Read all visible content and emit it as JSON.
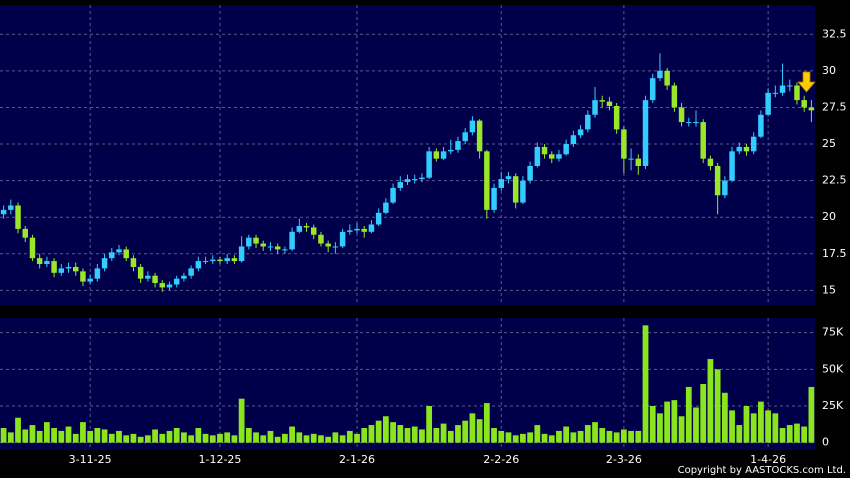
{
  "chart_data": [
    {
      "type": "candlestick",
      "up_color": "#33ccff",
      "down_color": "#99e62a",
      "ylim": [
        14,
        34.5
      ],
      "yticks": [
        15,
        17.5,
        20,
        22.5,
        25,
        27.5,
        30,
        32.5
      ],
      "grid": true,
      "ohlc": [
        [
          20.2,
          20.8,
          19.9,
          20.5
        ],
        [
          20.5,
          21.2,
          20.2,
          20.8
        ],
        [
          20.8,
          21.0,
          18.9,
          19.2
        ],
        [
          19.2,
          19.4,
          18.3,
          18.6
        ],
        [
          18.6,
          18.8,
          17.0,
          17.2
        ],
        [
          17.2,
          17.5,
          16.5,
          16.8
        ],
        [
          16.8,
          17.3,
          16.6,
          17.0
        ],
        [
          17.0,
          17.2,
          15.9,
          16.2
        ],
        [
          16.2,
          16.8,
          16.0,
          16.5
        ],
        [
          16.5,
          16.9,
          16.2,
          16.6
        ],
        [
          16.6,
          16.9,
          16.0,
          16.3
        ],
        [
          16.3,
          16.5,
          15.3,
          15.6
        ],
        [
          15.6,
          16.1,
          15.4,
          15.8
        ],
        [
          15.8,
          16.8,
          15.6,
          16.5
        ],
        [
          16.5,
          17.5,
          16.3,
          17.2
        ],
        [
          17.2,
          17.9,
          17.0,
          17.6
        ],
        [
          17.6,
          18.1,
          17.4,
          17.8
        ],
        [
          17.8,
          18.0,
          17.0,
          17.2
        ],
        [
          17.2,
          17.4,
          16.3,
          16.6
        ],
        [
          16.6,
          16.8,
          15.5,
          15.8
        ],
        [
          15.8,
          16.3,
          15.6,
          16.0
        ],
        [
          16.0,
          16.2,
          15.2,
          15.5
        ],
        [
          15.5,
          15.7,
          14.9,
          15.2
        ],
        [
          15.2,
          15.6,
          15.0,
          15.4
        ],
        [
          15.4,
          16.0,
          15.2,
          15.8
        ],
        [
          15.8,
          16.2,
          15.6,
          16.0
        ],
        [
          16.0,
          16.7,
          15.8,
          16.5
        ],
        [
          16.5,
          17.3,
          16.3,
          17.0
        ],
        [
          17.0,
          17.3,
          16.8,
          17.0
        ],
        [
          17.0,
          17.4,
          16.8,
          17.1
        ],
        [
          17.1,
          17.3,
          16.8,
          17.0
        ],
        [
          17.0,
          17.5,
          16.8,
          17.2
        ],
        [
          17.2,
          17.4,
          16.8,
          17.0
        ],
        [
          17.0,
          18.7,
          16.9,
          18.0
        ],
        [
          18.0,
          18.8,
          17.8,
          18.6
        ],
        [
          18.6,
          18.8,
          17.9,
          18.2
        ],
        [
          18.2,
          18.4,
          17.7,
          18.0
        ],
        [
          18.0,
          18.3,
          17.7,
          18.0
        ],
        [
          18.0,
          18.2,
          17.5,
          17.8
        ],
        [
          17.8,
          18.0,
          17.5,
          17.8
        ],
        [
          17.8,
          19.3,
          17.7,
          19.0
        ],
        [
          19.0,
          19.9,
          18.9,
          19.4
        ],
        [
          19.4,
          19.6,
          19.0,
          19.3
        ],
        [
          19.3,
          19.5,
          18.5,
          18.8
        ],
        [
          18.8,
          19.0,
          18.0,
          18.2
        ],
        [
          18.2,
          18.4,
          17.6,
          18.0
        ],
        [
          18.0,
          18.3,
          17.5,
          18.0
        ],
        [
          18.0,
          19.2,
          17.9,
          19.0
        ],
        [
          19.0,
          19.5,
          18.8,
          19.1
        ],
        [
          19.1,
          19.6,
          18.9,
          19.2
        ],
        [
          19.2,
          19.4,
          18.6,
          19.0
        ],
        [
          19.0,
          19.8,
          18.9,
          19.5
        ],
        [
          19.5,
          20.6,
          19.4,
          20.3
        ],
        [
          20.3,
          21.3,
          20.2,
          21.0
        ],
        [
          21.0,
          22.3,
          20.9,
          22.0
        ],
        [
          22.0,
          22.8,
          21.8,
          22.4
        ],
        [
          22.4,
          22.9,
          22.2,
          22.6
        ],
        [
          22.6,
          22.9,
          22.3,
          22.6
        ],
        [
          22.6,
          23.0,
          22.4,
          22.7
        ],
        [
          22.7,
          24.8,
          22.6,
          24.5
        ],
        [
          24.5,
          24.7,
          23.8,
          24.0
        ],
        [
          24.0,
          24.8,
          23.9,
          24.5
        ],
        [
          24.5,
          25.3,
          24.3,
          24.6
        ],
        [
          24.6,
          25.5,
          24.4,
          25.2
        ],
        [
          25.2,
          26.1,
          25.0,
          25.8
        ],
        [
          25.8,
          26.9,
          25.6,
          26.6
        ],
        [
          26.6,
          26.7,
          24.0,
          24.5
        ],
        [
          24.5,
          24.6,
          19.9,
          20.5
        ],
        [
          20.5,
          22.3,
          20.3,
          22.0
        ],
        [
          22.0,
          23.1,
          21.8,
          22.6
        ],
        [
          22.6,
          23.1,
          22.3,
          22.8
        ],
        [
          22.8,
          23.0,
          20.6,
          21.0
        ],
        [
          21.0,
          22.8,
          20.9,
          22.5
        ],
        [
          22.5,
          23.8,
          22.3,
          23.5
        ],
        [
          23.5,
          25.1,
          23.4,
          24.8
        ],
        [
          24.8,
          25.0,
          24.0,
          24.3
        ],
        [
          24.3,
          24.5,
          23.7,
          24.0
        ],
        [
          24.0,
          24.6,
          23.8,
          24.3
        ],
        [
          24.3,
          25.3,
          24.2,
          25.0
        ],
        [
          25.0,
          25.9,
          24.8,
          25.6
        ],
        [
          25.6,
          26.3,
          25.4,
          26.0
        ],
        [
          26.0,
          27.3,
          25.8,
          27.0
        ],
        [
          27.0,
          28.9,
          26.8,
          28.0
        ],
        [
          28.0,
          28.3,
          27.5,
          27.9
        ],
        [
          27.9,
          28.2,
          27.3,
          27.6
        ],
        [
          27.6,
          27.8,
          25.7,
          26.0
        ],
        [
          26.0,
          26.2,
          23.0,
          24.0
        ],
        [
          24.0,
          24.7,
          23.2,
          24.0
        ],
        [
          24.0,
          24.3,
          22.9,
          23.5
        ],
        [
          23.5,
          28.3,
          23.3,
          28.0
        ],
        [
          28.0,
          29.8,
          27.8,
          29.5
        ],
        [
          29.5,
          31.2,
          29.3,
          30.0
        ],
        [
          30.0,
          30.2,
          28.7,
          29.0
        ],
        [
          29.0,
          29.2,
          27.2,
          27.5
        ],
        [
          27.5,
          27.8,
          26.2,
          26.5
        ],
        [
          26.5,
          26.8,
          26.2,
          26.5
        ],
        [
          26.5,
          27.3,
          26.2,
          26.5
        ],
        [
          26.5,
          26.7,
          23.7,
          24.0
        ],
        [
          24.0,
          24.2,
          23.2,
          23.5
        ],
        [
          23.5,
          23.7,
          20.2,
          21.5
        ],
        [
          21.5,
          22.8,
          21.3,
          22.5
        ],
        [
          22.5,
          24.8,
          22.4,
          24.5
        ],
        [
          24.5,
          25.1,
          24.3,
          24.8
        ],
        [
          24.8,
          25.0,
          24.2,
          24.5
        ],
        [
          24.5,
          25.8,
          24.3,
          25.5
        ],
        [
          25.5,
          27.3,
          25.4,
          27.0
        ],
        [
          27.0,
          28.8,
          26.9,
          28.5
        ],
        [
          28.5,
          29.0,
          28.2,
          28.5
        ],
        [
          28.5,
          30.5,
          28.3,
          29.0
        ],
        [
          29.0,
          29.4,
          28.6,
          29.0
        ],
        [
          29.0,
          29.2,
          27.7,
          28.0
        ],
        [
          28.0,
          28.3,
          27.2,
          27.5
        ],
        [
          27.5,
          28.0,
          26.5,
          27.3
        ]
      ]
    },
    {
      "type": "bar",
      "color": "#8be51e",
      "ylim": [
        -5000,
        85000
      ],
      "yticks": [
        0,
        {
          "value": 25000,
          "label": "25K"
        },
        {
          "value": 50000,
          "label": "50K"
        },
        {
          "value": 75000,
          "label": "75K"
        }
      ],
      "grid": true,
      "categories": [
        null,
        null,
        null,
        null,
        null,
        null,
        null,
        null,
        null,
        null,
        null,
        null,
        "3-11-25",
        null,
        null,
        null,
        null,
        null,
        null,
        null,
        null,
        null,
        null,
        null,
        null,
        null,
        null,
        null,
        null,
        null,
        "1-12-25",
        null,
        null,
        null,
        null,
        null,
        null,
        null,
        null,
        null,
        null,
        null,
        null,
        null,
        null,
        null,
        null,
        null,
        null,
        "2-1-26",
        null,
        null,
        null,
        null,
        null,
        null,
        null,
        null,
        null,
        null,
        null,
        null,
        null,
        null,
        null,
        null,
        null,
        null,
        null,
        "2-2-26",
        null,
        null,
        null,
        null,
        null,
        null,
        null,
        null,
        null,
        null,
        null,
        null,
        null,
        null,
        null,
        null,
        "2-3-26",
        null,
        null,
        null,
        null,
        null,
        null,
        null,
        null,
        null,
        null,
        null,
        null,
        null,
        null,
        null,
        null,
        null,
        null,
        null,
        "1-4-26",
        null,
        null,
        null,
        null,
        null,
        null
      ],
      "values": [
        10000,
        7000,
        17000,
        9000,
        12000,
        8000,
        14000,
        10000,
        8000,
        11000,
        6000,
        14000,
        8000,
        10000,
        9000,
        6000,
        8000,
        5000,
        6000,
        4000,
        5000,
        9000,
        6000,
        8000,
        10000,
        7000,
        5000,
        10000,
        6000,
        5000,
        6000,
        7000,
        5000,
        30000,
        10000,
        7000,
        5000,
        8000,
        4000,
        6000,
        11000,
        7000,
        5000,
        6000,
        5000,
        4000,
        7000,
        5000,
        8000,
        6000,
        10000,
        12000,
        15000,
        18000,
        14000,
        12000,
        10000,
        11000,
        9000,
        25000,
        10000,
        13000,
        8000,
        12000,
        15000,
        20000,
        16000,
        27000,
        10000,
        8000,
        7000,
        5000,
        6000,
        7000,
        12000,
        6000,
        5000,
        8000,
        11000,
        7000,
        8000,
        12000,
        14000,
        10000,
        8000,
        7000,
        9000,
        8000,
        8000,
        80000,
        25000,
        20000,
        28000,
        29000,
        18000,
        38000,
        24000,
        40000,
        57000,
        50000,
        34000,
        22000,
        12000,
        25000,
        20000,
        28000,
        22000,
        20000,
        10000,
        12000,
        13000,
        11000,
        38000
      ]
    }
  ],
  "footer": "Copyright by AASTOCKS.com Ltd."
}
